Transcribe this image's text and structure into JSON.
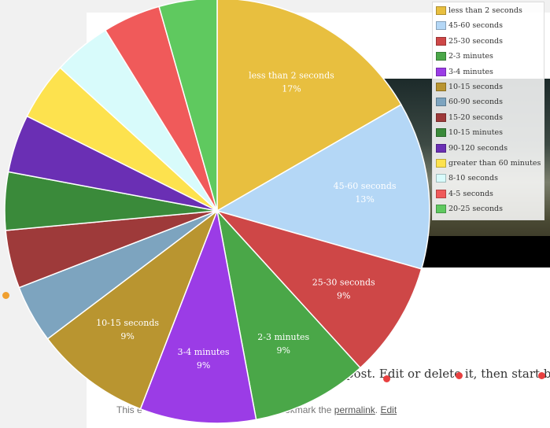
{
  "page": {
    "post_text": "post. Edit or delete it, then start blog",
    "footer_prefix": "This e",
    "footer_mid": "Bookmark the",
    "footer_permalink": "permalink",
    "footer_sep": ".",
    "footer_edit": "Edit"
  },
  "chart_data": {
    "type": "pie",
    "title": "",
    "slices": [
      {
        "label": "less than 2 seconds",
        "percent_label": "17%",
        "value": 17,
        "color": "#e8bf3f"
      },
      {
        "label": "45-60 seconds",
        "percent_label": "13%",
        "value": 13,
        "color": "#b4d7f6"
      },
      {
        "label": "25-30 seconds",
        "percent_label": "9%",
        "value": 9,
        "color": "#ce4747"
      },
      {
        "label": "2-3 minutes",
        "percent_label": "9%",
        "value": 9,
        "color": "#4aa748"
      },
      {
        "label": "3-4 minutes",
        "percent_label": "9%",
        "value": 9,
        "color": "#9b3ce6"
      },
      {
        "label": "10-15 seconds",
        "percent_label": "9%",
        "value": 9,
        "color": "#b99530"
      },
      {
        "label": "60-90 seconds",
        "percent_label": "",
        "value": 4.5,
        "color": "#7da4bf"
      },
      {
        "label": "15-20 seconds",
        "percent_label": "",
        "value": 4.5,
        "color": "#9e3a3a"
      },
      {
        "label": "10-15 minutes",
        "percent_label": "",
        "value": 4.5,
        "color": "#3a8a3a"
      },
      {
        "label": "90-120 seconds",
        "percent_label": "",
        "value": 4.5,
        "color": "#6a2fb4"
      },
      {
        "label": "greater than 60 minutes",
        "percent_label": "",
        "value": 4.5,
        "color": "#fde24e"
      },
      {
        "label": "8-10 seconds",
        "percent_label": "",
        "value": 4.5,
        "color": "#d8fbfb"
      },
      {
        "label": "4-5 seconds",
        "percent_label": "",
        "value": 4.5,
        "color": "#f05a5a"
      },
      {
        "label": "20-25 seconds",
        "percent_label": "",
        "value": 4.5,
        "color": "#5fc95f"
      }
    ],
    "legend_position": "top-right"
  }
}
